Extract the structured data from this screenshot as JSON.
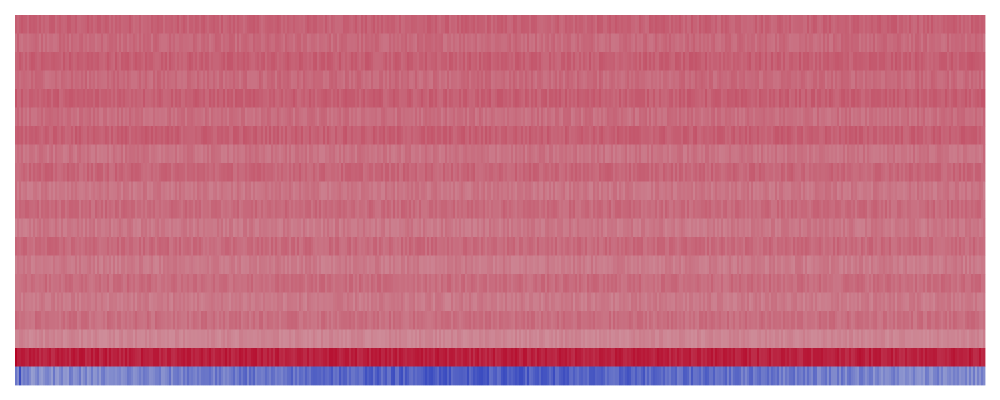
{
  "chart_data": {
    "type": "heatmap",
    "title": "",
    "xlabel": "",
    "ylabel": "",
    "n_rows": 20,
    "n_cols": 485,
    "colormap": "coolwarm",
    "color_scale": {
      "low": "#3b4cc0",
      "mid": "#dddddd",
      "high": "#b40426"
    },
    "row_levels": [
      0.785,
      0.765,
      0.79,
      0.765,
      0.79,
      0.755,
      0.79,
      0.745,
      0.775,
      0.74,
      0.765,
      0.735,
      0.765,
      0.73,
      0.76,
      0.73,
      0.755,
      0.705,
      0.935,
      0.135
    ],
    "row_variation": [
      0.025,
      0.025,
      0.025,
      0.025,
      0.025,
      0.025,
      0.025,
      0.025,
      0.025,
      0.025,
      0.025,
      0.025,
      0.025,
      0.025,
      0.025,
      0.025,
      0.025,
      0.02,
      0.035,
      0.07
    ],
    "grid": false,
    "legend": "none"
  }
}
